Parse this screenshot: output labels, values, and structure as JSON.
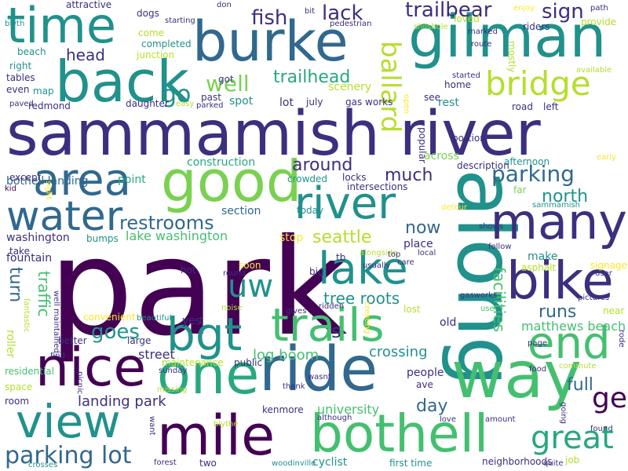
{
  "cloud": {
    "palette": {
      "dark_purple": "#440154",
      "indigo": "#3b2f7f",
      "slate_blue": "#31688e",
      "blue": "#2c728e",
      "teal": "#21918c",
      "sea_green": "#27a87f",
      "green": "#44bf70",
      "lime": "#7ad151",
      "yellow_green": "#b5de2b",
      "yellow": "#fde725"
    },
    "words": [
      {
        "text": "park",
        "color": "#440154"
      },
      {
        "text": "sammamish river",
        "color": "#3b2f7f"
      },
      {
        "text": "along",
        "color": "#21918c"
      },
      {
        "text": "way",
        "color": "#44bf70"
      },
      {
        "text": "burke",
        "color": "#31688e"
      },
      {
        "text": "gilman",
        "color": "#21918c"
      },
      {
        "text": "back",
        "color": "#21918c"
      },
      {
        "text": "time",
        "color": "#21918c"
      },
      {
        "text": "ride",
        "color": "#31688e"
      },
      {
        "text": "one",
        "color": "#27a87f"
      },
      {
        "text": "nice",
        "color": "#440154"
      },
      {
        "text": "view",
        "color": "#21918c"
      },
      {
        "text": "mile",
        "color": "#440154"
      },
      {
        "text": "bothell",
        "color": "#44bf70"
      },
      {
        "text": "good",
        "color": "#7ad151"
      },
      {
        "text": "area",
        "color": "#31688e"
      },
      {
        "text": "water",
        "color": "#31688e"
      },
      {
        "text": "many",
        "color": "#3b2f7f"
      },
      {
        "text": "bike",
        "color": "#3b2f7f"
      },
      {
        "text": "end",
        "color": "#44bf70"
      },
      {
        "text": "lake",
        "color": "#21918c"
      },
      {
        "text": "river",
        "color": "#21918c"
      },
      {
        "text": "trails",
        "color": "#44bf70"
      },
      {
        "text": "bgt",
        "color": "#21918c"
      },
      {
        "text": "uw",
        "color": "#21918c"
      },
      {
        "text": "bridge",
        "color": "#b5de2b"
      },
      {
        "text": "ballard",
        "color": "#b5de2b"
      },
      {
        "text": "great",
        "color": "#27a87f"
      },
      {
        "text": "ge",
        "color": "#440154"
      },
      {
        "text": "parking lot",
        "color": "#31688e"
      },
      {
        "text": "parking",
        "color": "#31688e"
      },
      {
        "text": "fish",
        "color": "#3b2f7f"
      },
      {
        "text": "lack",
        "color": "#3b2f7f"
      },
      {
        "text": "trailbear",
        "color": "#3b2f7f"
      },
      {
        "text": "sign",
        "color": "#3b2f7f"
      },
      {
        "text": "go",
        "color": "#21918c"
      },
      {
        "text": "well",
        "color": "#7ad151"
      },
      {
        "text": "trailhead",
        "color": "#27a87f"
      },
      {
        "text": "head",
        "color": "#3b2f7f"
      },
      {
        "text": "restrooms",
        "color": "#31688e"
      },
      {
        "text": "around",
        "color": "#3b2f7f"
      },
      {
        "text": "much",
        "color": "#3b2f7f"
      },
      {
        "text": "north",
        "color": "#21918c"
      },
      {
        "text": "now",
        "color": "#31688e"
      },
      {
        "text": "seattle",
        "color": "#b5de2b"
      },
      {
        "text": "full",
        "color": "#31688e"
      },
      {
        "text": "runs",
        "color": "#31688e"
      },
      {
        "text": "facilities",
        "color": "#44bf70"
      },
      {
        "text": "matthews beach",
        "color": "#44bf70"
      },
      {
        "text": "tree roots",
        "color": "#21918c"
      },
      {
        "text": "turn",
        "color": "#31688e"
      },
      {
        "text": "traffic",
        "color": "#44bf70"
      },
      {
        "text": "goes",
        "color": "#21918c"
      },
      {
        "text": "s",
        "color": "#3b2f7f"
      },
      {
        "text": "crossing",
        "color": "#21918c"
      },
      {
        "text": "day",
        "color": "#31688e"
      },
      {
        "text": "university",
        "color": "#44bf70"
      },
      {
        "text": "landing park",
        "color": "#3b2f7f"
      },
      {
        "text": "log boom",
        "color": "#44bf70"
      },
      {
        "text": "street",
        "color": "#3b2f7f"
      },
      {
        "text": "lake washington",
        "color": "#44bf70"
      },
      {
        "text": "section",
        "color": "#31688e"
      },
      {
        "text": "construction",
        "color": "#27a87f"
      },
      {
        "text": "point",
        "color": "#27a87f"
      },
      {
        "text": "bothell landing",
        "color": "#31688e"
      },
      {
        "text": "washington",
        "color": "#3b2f7f"
      },
      {
        "text": "fountain",
        "color": "#3b2f7f"
      },
      {
        "text": "make",
        "color": "#21918c"
      },
      {
        "text": "place",
        "color": "#3b2f7f"
      },
      {
        "text": "people",
        "color": "#3b2f7f"
      },
      {
        "text": "scenery",
        "color": "#b5de2b"
      },
      {
        "text": "spot",
        "color": "#21918c"
      },
      {
        "text": "lot",
        "color": "#3b2f7f"
      },
      {
        "text": "july",
        "color": "#3b2f7f"
      },
      {
        "text": "gas works",
        "color": "#3b2f7f"
      },
      {
        "text": "rest",
        "color": "#21918c"
      },
      {
        "text": "road",
        "color": "#3b2f7f"
      },
      {
        "text": "left",
        "color": "#3b2f7f"
      },
      {
        "text": "see",
        "color": "#3b2f7f"
      },
      {
        "text": "home",
        "color": "#3b2f7f"
      },
      {
        "text": "popular",
        "color": "#3b2f7f"
      },
      {
        "text": "portion",
        "color": "#3b2f7f"
      },
      {
        "text": "across",
        "color": "#7ad151"
      },
      {
        "text": "description",
        "color": "#3b2f7f"
      },
      {
        "text": "afternoon",
        "color": "#21918c"
      },
      {
        "text": "far",
        "color": "#7ad151"
      },
      {
        "text": "intersections",
        "color": "#3b2f7f"
      },
      {
        "text": "locks",
        "color": "#3b2f7f"
      },
      {
        "text": "crowded",
        "color": "#21918c"
      },
      {
        "text": "today",
        "color": "#21918c"
      },
      {
        "text": "stop",
        "color": "#fde725"
      },
      {
        "text": "bumps",
        "color": "#21918c"
      },
      {
        "text": "take",
        "color": "#3b2f7f"
      },
      {
        "text": "tb",
        "color": "#3b2f7f"
      },
      {
        "text": "big",
        "color": "#3b2f7f"
      },
      {
        "text": "soon",
        "color": "#fde725"
      },
      {
        "text": "round",
        "color": "#3b2f7f"
      },
      {
        "text": "hot",
        "color": "#3b2f7f"
      },
      {
        "text": "past",
        "color": "#3b2f7f"
      },
      {
        "text": "got",
        "color": "#3b2f7f"
      },
      {
        "text": "daughter",
        "color": "#3b2f7f"
      },
      {
        "text": "easy",
        "color": "#b5de2b"
      },
      {
        "text": "parked",
        "color": "#3b2f7f"
      },
      {
        "text": "redmond",
        "color": "#3b2f7f"
      },
      {
        "text": "tables",
        "color": "#3b2f7f"
      },
      {
        "text": "even",
        "color": "#3b2f7f"
      },
      {
        "text": "map",
        "color": "#21918c"
      },
      {
        "text": "right",
        "color": "#21918c"
      },
      {
        "text": "beach",
        "color": "#21918c"
      },
      {
        "text": "completed",
        "color": "#21918c"
      },
      {
        "text": "junction",
        "color": "#b5de2b"
      },
      {
        "text": "come",
        "color": "#b5de2b"
      },
      {
        "text": "dogs",
        "color": "#3b2f7f"
      },
      {
        "text": "starting",
        "color": "#3b2f7f"
      },
      {
        "text": "attractive",
        "color": "#3b2f7f"
      },
      {
        "text": "blyth",
        "color": "#21918c"
      },
      {
        "text": "don",
        "color": "#3b2f7f"
      },
      {
        "text": "bit",
        "color": "#3b2f7f"
      },
      {
        "text": "pedestrian",
        "color": "#3b2f7f"
      },
      {
        "text": "loved",
        "color": "#b5de2b"
      },
      {
        "text": "shilshole",
        "color": "#b5de2b"
      },
      {
        "text": "enjoy",
        "color": "#fde725"
      },
      {
        "text": "path",
        "color": "#3b2f7f"
      },
      {
        "text": "riders",
        "color": "#3b2f7f"
      },
      {
        "text": "provide",
        "color": "#b5de2b"
      },
      {
        "text": "marked",
        "color": "#3b2f7f"
      },
      {
        "text": "route",
        "color": "#3b2f7f"
      },
      {
        "text": "mostly",
        "color": "#b5de2b"
      },
      {
        "text": "available",
        "color": "#b5de2b"
      },
      {
        "text": "started",
        "color": "#3b2f7f"
      },
      {
        "text": "open",
        "color": "#fde725"
      },
      {
        "text": "paved",
        "color": "#3b2f7f"
      },
      {
        "text": "early",
        "color": "#fde725"
      },
      {
        "text": "except",
        "color": "#3b2f7f"
      },
      {
        "text": "kid",
        "color": "#440154"
      },
      {
        "text": "sight",
        "color": "#fde725"
      },
      {
        "text": "detour",
        "color": "#fde725"
      },
      {
        "text": "sammamish",
        "color": "#21918c"
      },
      {
        "text": "shows",
        "color": "#3b2f7f"
      },
      {
        "text": "usually",
        "color": "#3b2f7f"
      },
      {
        "text": "alongside",
        "color": "#b5de2b"
      },
      {
        "text": "top",
        "color": "#3b2f7f"
      },
      {
        "text": "local",
        "color": "#3b2f7f"
      },
      {
        "text": "follow",
        "color": "#3b2f7f"
      },
      {
        "text": "signage",
        "color": "#fde725"
      },
      {
        "text": "user",
        "color": "#3b2f7f"
      },
      {
        "text": "asphalt",
        "color": "#b5de2b"
      },
      {
        "text": "care",
        "color": "#3b2f7f"
      },
      {
        "text": "gasworks",
        "color": "#3b2f7f"
      },
      {
        "text": "pictures",
        "color": "#3b2f7f"
      },
      {
        "text": "near",
        "color": "#b5de2b"
      },
      {
        "text": "rode",
        "color": "#3b2f7f"
      },
      {
        "text": "fantastic",
        "color": "#b5de2b"
      },
      {
        "text": "well maintained",
        "color": "#3b2f7f"
      },
      {
        "text": "convenient",
        "color": "#fde725"
      },
      {
        "text": "beautiful",
        "color": "#21918c"
      },
      {
        "text": "noise",
        "color": "#b5de2b"
      },
      {
        "text": "gives",
        "color": "#3b2f7f"
      },
      {
        "text": "ridden",
        "color": "#3b2f7f"
      },
      {
        "text": "creating",
        "color": "#fde725"
      },
      {
        "text": "lost",
        "color": "#b5de2b"
      },
      {
        "text": "old",
        "color": "#3b2f7f"
      },
      {
        "text": "use",
        "color": "#44bf70"
      },
      {
        "text": "yes",
        "color": "#3b2f7f"
      },
      {
        "text": "t",
        "color": "#3b2f7f"
      },
      {
        "text": "better",
        "color": "#3b2f7f"
      },
      {
        "text": "large",
        "color": "#3b2f7f"
      },
      {
        "text": "roller",
        "color": "#b5de2b"
      },
      {
        "text": "find",
        "color": "#3b2f7f"
      },
      {
        "text": "sunday",
        "color": "#3b2f7f"
      },
      {
        "text": "maintenance",
        "color": "#b5de2b"
      },
      {
        "text": "public",
        "color": "#3b2f7f"
      },
      {
        "text": "page",
        "color": "#3b2f7f"
      },
      {
        "text": "food",
        "color": "#3b2f7f"
      },
      {
        "text": "commute",
        "color": "#b5de2b"
      },
      {
        "text": "residential",
        "color": "#44bf70"
      },
      {
        "text": "picnic",
        "color": "#3b2f7f"
      },
      {
        "text": "wasnt",
        "color": "#3b2f7f"
      },
      {
        "text": "thank",
        "color": "#3b2f7f"
      },
      {
        "text": "ave",
        "color": "#3b2f7f"
      },
      {
        "text": "space",
        "color": "#b5de2b"
      },
      {
        "text": "room",
        "color": "#3b2f7f"
      },
      {
        "text": "missing",
        "color": "#b5de2b"
      },
      {
        "text": "kenmore",
        "color": "#3b2f7f"
      },
      {
        "text": "although",
        "color": "#3b2f7f"
      },
      {
        "text": "going",
        "color": "#3b2f7f"
      },
      {
        "text": "found",
        "color": "#3b2f7f"
      },
      {
        "text": "want",
        "color": "#3b2f7f"
      },
      {
        "text": "blythe",
        "color": "#b5de2b"
      },
      {
        "text": "love",
        "color": "#3b2f7f"
      },
      {
        "text": "amount",
        "color": "#3b2f7f"
      },
      {
        "text": "job",
        "color": "#b5de2b"
      },
      {
        "text": "cyclist",
        "color": "#21918c"
      },
      {
        "text": "first time",
        "color": "#21918c"
      },
      {
        "text": "neighborhoods",
        "color": "#3b2f7f"
      },
      {
        "text": "quite",
        "color": "#3b2f7f"
      },
      {
        "text": "two",
        "color": "#3b2f7f"
      },
      {
        "text": "woodinville",
        "color": "#21918c"
      },
      {
        "text": "forest",
        "color": "#3b2f7f"
      },
      {
        "text": "crosses",
        "color": "#21918c"
      },
      {
        "text": "rails",
        "color": "#b5de2b"
      }
    ]
  }
}
